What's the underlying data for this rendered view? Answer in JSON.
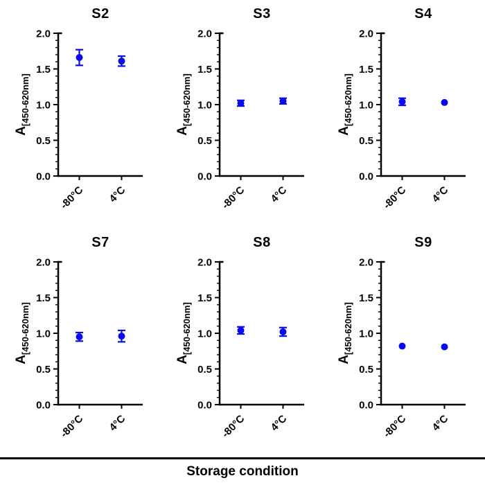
{
  "chart_data": {
    "type": "scatter",
    "xlabel": "Storage condition",
    "categories": [
      "-80°C",
      "4°C"
    ],
    "ylabel_main": "A",
    "ylabel_sub": "[450-620nm]",
    "ylim": [
      0.0,
      2.0
    ],
    "ytick_labels": [
      "0.0",
      "0.5",
      "1.0",
      "1.5",
      "2.0"
    ],
    "minor_tick_step": 0.1,
    "grid": false,
    "legend_position": "none",
    "marker_shape": "circle",
    "error_bar_style": "symmetric-with-caps",
    "colors": {
      "marker": "#0b0bef",
      "axis": "#000000",
      "text": "#000000",
      "background": "#ffffff"
    },
    "subplots": [
      {
        "title": "S2",
        "values": [
          1.66,
          1.61
        ],
        "errors": [
          0.11,
          0.07
        ]
      },
      {
        "title": "S3",
        "values": [
          1.02,
          1.05
        ],
        "errors": [
          0.04,
          0.04
        ]
      },
      {
        "title": "S4",
        "values": [
          1.04,
          1.03
        ],
        "errors": [
          0.05,
          0.02
        ]
      },
      {
        "title": "S7",
        "values": [
          0.95,
          0.96
        ],
        "errors": [
          0.06,
          0.08
        ]
      },
      {
        "title": "S8",
        "values": [
          1.04,
          1.02
        ],
        "errors": [
          0.05,
          0.06
        ]
      },
      {
        "title": "S9",
        "values": [
          0.82,
          0.81
        ],
        "errors": [
          0.02,
          0.02
        ]
      }
    ]
  }
}
